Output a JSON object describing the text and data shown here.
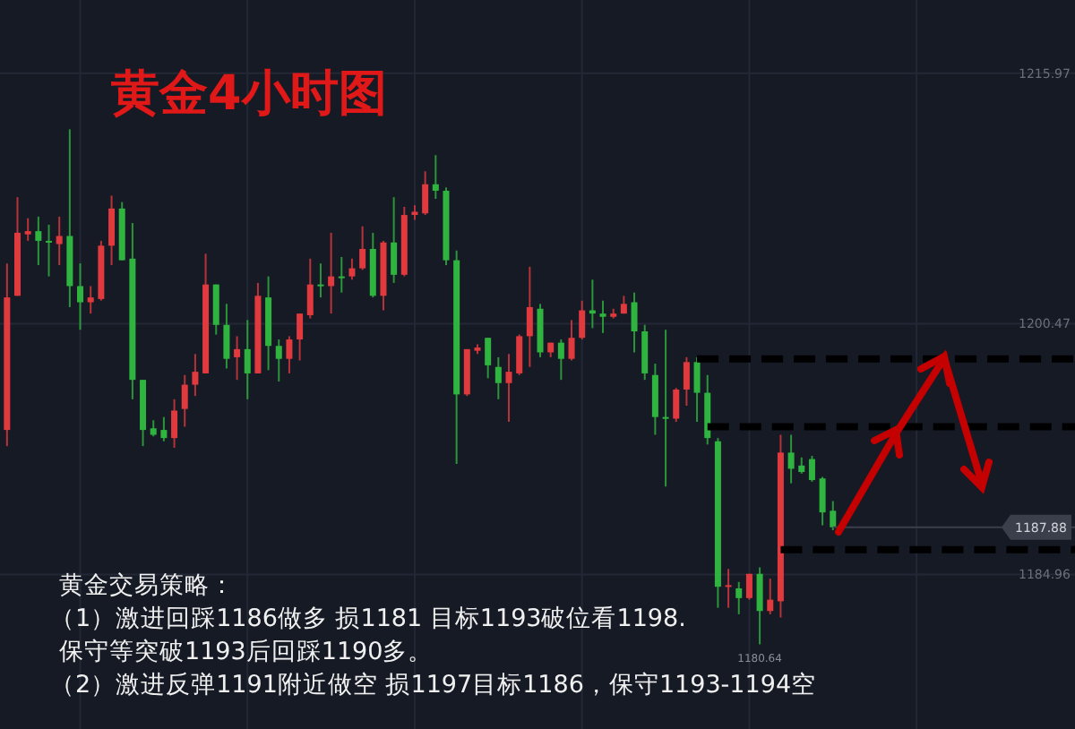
{
  "chart_data": {
    "type": "candlestick",
    "title": "黄金4小时图",
    "categories": [
      null,
      null,
      null,
      null,
      null,
      null,
      null,
      null,
      null,
      null,
      null,
      null,
      null,
      null,
      null,
      null,
      null,
      null,
      null,
      null,
      null,
      null,
      null,
      null,
      null,
      null,
      null,
      null,
      null,
      null,
      null,
      null,
      null,
      null,
      null,
      null,
      null,
      null,
      null,
      null,
      null,
      null,
      null,
      null,
      null,
      null,
      null,
      null,
      null,
      null,
      null,
      null,
      null,
      null,
      null,
      null,
      null,
      null,
      null,
      null,
      null,
      null,
      null,
      null,
      null,
      null,
      null,
      null,
      null,
      null,
      null,
      null,
      null,
      null,
      null,
      null,
      null,
      null,
      null,
      null,
      null,
      null,
      null,
      null,
      null,
      null,
      null,
      null,
      null,
      null,
      null,
      null,
      null,
      null,
      null,
      null,
      null
    ],
    "ohlc": [
      [
        1193.9,
        1204.2,
        1192.9,
        1202.1
      ],
      [
        1202.2,
        1208.3,
        1202.2,
        1206.1
      ],
      [
        1206.0,
        1207.0,
        1205.6,
        1206.2
      ],
      [
        1206.2,
        1207.1,
        1204.1,
        1205.6
      ],
      [
        1205.6,
        1206.6,
        1203.4,
        1205.5
      ],
      [
        1205.4,
        1207.1,
        1204.1,
        1205.9
      ],
      [
        1205.9,
        1212.5,
        1201.5,
        1202.8
      ],
      [
        1202.8,
        1204.2,
        1200.1,
        1201.8
      ],
      [
        1201.8,
        1202.8,
        1201.1,
        1202.1
      ],
      [
        1202.0,
        1205.6,
        1201.9,
        1205.3
      ],
      [
        1205.3,
        1208.4,
        1204.1,
        1207.6
      ],
      [
        1207.6,
        1208.0,
        1204.4,
        1204.4
      ],
      [
        1204.5,
        1206.7,
        1195.8,
        1197.0
      ],
      [
        1197.0,
        1197.0,
        1192.9,
        1193.9
      ],
      [
        1194.0,
        1194.5,
        1193.5,
        1193.6
      ],
      [
        1193.9,
        1194.7,
        1193.2,
        1193.4
      ],
      [
        1193.4,
        1195.8,
        1192.8,
        1195.1
      ],
      [
        1195.2,
        1197.3,
        1194.1,
        1196.7
      ],
      [
        1196.7,
        1198.6,
        1196.0,
        1197.5
      ],
      [
        1197.4,
        1204.8,
        1197.4,
        1202.9
      ],
      [
        1202.9,
        1202.9,
        1199.8,
        1200.4
      ],
      [
        1200.4,
        1201.7,
        1197.7,
        1198.3
      ],
      [
        1198.4,
        1199.7,
        1197.0,
        1198.9
      ],
      [
        1198.9,
        1200.7,
        1195.8,
        1197.4
      ],
      [
        1197.4,
        1203.0,
        1197.4,
        1202.2
      ],
      [
        1202.1,
        1203.4,
        1197.6,
        1199.1
      ],
      [
        1199.1,
        1199.5,
        1196.9,
        1198.3
      ],
      [
        1198.3,
        1199.7,
        1197.4,
        1199.5
      ],
      [
        1199.5,
        1201.1,
        1198.2,
        1201.1
      ],
      [
        1201.0,
        1204.5,
        1200.8,
        1202.9
      ],
      [
        1202.9,
        1204.2,
        1202.1,
        1202.8
      ],
      [
        1202.8,
        1206.1,
        1201.1,
        1203.4
      ],
      [
        1203.4,
        1204.6,
        1202.4,
        1203.3
      ],
      [
        1203.4,
        1204.5,
        1203.2,
        1203.9
      ],
      [
        1203.9,
        1206.5,
        1203.8,
        1205.1
      ],
      [
        1205.1,
        1206.1,
        1202.1,
        1202.2
      ],
      [
        1202.2,
        1205.6,
        1201.3,
        1205.5
      ],
      [
        1205.5,
        1208.3,
        1203.0,
        1203.5
      ],
      [
        1203.5,
        1207.7,
        1203.4,
        1207.2
      ],
      [
        1207.2,
        1207.8,
        1206.9,
        1207.4
      ],
      [
        1207.3,
        1209.9,
        1207.2,
        1209.1
      ],
      [
        1209.1,
        1210.9,
        1208.2,
        1208.7
      ],
      [
        1208.7,
        1208.9,
        1204.1,
        1204.4
      ],
      [
        1204.4,
        1205.0,
        1191.8,
        1196.1
      ],
      [
        1196.1,
        1198.9,
        1196.0,
        1198.9
      ],
      [
        1198.8,
        1199.2,
        1198.6,
        1199.0
      ],
      [
        1199.6,
        1199.6,
        1197.1,
        1197.9
      ],
      [
        1197.8,
        1198.4,
        1195.8,
        1196.8
      ],
      [
        1196.8,
        1198.6,
        1194.4,
        1197.5
      ],
      [
        1197.4,
        1199.8,
        1197.3,
        1199.7
      ],
      [
        1199.7,
        1204.0,
        1197.8,
        1201.5
      ],
      [
        1201.4,
        1201.7,
        1198.4,
        1198.7
      ],
      [
        1198.7,
        1199.3,
        1198.4,
        1199.3
      ],
      [
        1199.3,
        1199.5,
        1197.0,
        1198.3
      ],
      [
        1198.3,
        1200.7,
        1198.2,
        1199.6
      ],
      [
        1199.6,
        1201.9,
        1199.5,
        1201.3
      ],
      [
        1201.3,
        1203.2,
        1200.2,
        1201.1
      ],
      [
        1201.1,
        1201.9,
        1199.9,
        1200.9
      ],
      [
        1200.9,
        1201.4,
        1200.8,
        1201.1
      ],
      [
        1201.1,
        1202.2,
        1201.1,
        1201.7
      ],
      [
        1201.8,
        1202.4,
        1198.7,
        1200.0
      ],
      [
        1200.0,
        1200.4,
        1197.0,
        1197.4
      ],
      [
        1197.3,
        1198.0,
        1193.6,
        1194.7
      ],
      [
        1194.7,
        1200.1,
        1190.4,
        1194.6
      ],
      [
        1194.6,
        1196.5,
        1194.4,
        1196.4
      ],
      [
        1196.4,
        1198.4,
        1195.4,
        1198.1
      ],
      [
        1198.1,
        1198.4,
        1194.4,
        1196.2
      ],
      [
        1196.2,
        1197.3,
        1193.0,
        1193.4
      ],
      [
        1193.2,
        1193.4,
        1182.9,
        1184.2
      ],
      [
        1184.2,
        1185.3,
        1182.9,
        1184.3
      ],
      [
        1184.1,
        1184.5,
        1182.5,
        1183.5
      ],
      [
        1183.5,
        1185.0,
        1183.4,
        1185.0
      ],
      [
        1185.0,
        1185.4,
        1180.64,
        1182.7
      ],
      [
        1182.7,
        1184.7,
        1182.5,
        1183.4
      ],
      [
        1183.3,
        1193.6,
        1182.3,
        1192.5
      ],
      [
        1192.5,
        1193.6,
        1190.6,
        1191.5
      ],
      [
        1191.7,
        1192.2,
        1191.2,
        1191.3
      ],
      [
        1192.1,
        1192.3,
        1190.7,
        1190.8
      ],
      [
        1190.9,
        1191.0,
        1188.0,
        1188.8
      ],
      [
        1188.9,
        1189.5,
        1187.7,
        1187.88
      ],
      null,
      null,
      null,
      null,
      null,
      null,
      null,
      null,
      null,
      null,
      null,
      null,
      null,
      null,
      null,
      null,
      null
    ],
    "colors": [
      "#e0393e",
      "#e0393e",
      "#e0393e",
      "#2fb53f",
      "#2fb53f",
      "#e0393e",
      "#2fb53f",
      "#2fb53f",
      "#e0393e",
      "#e0393e",
      "#e0393e",
      "#2fb53f",
      "#2fb53f",
      "#2fb53f",
      "#2fb53f",
      "#2fb53f",
      "#e0393e",
      "#e0393e",
      "#e0393e",
      "#e0393e",
      "#2fb53f",
      "#2fb53f",
      "#e0393e",
      "#2fb53f",
      "#e0393e",
      "#2fb53f",
      "#2fb53f",
      "#e0393e",
      "#e0393e",
      "#e0393e",
      "#2fb53f",
      "#e0393e",
      "#2fb53f",
      "#e0393e",
      "#e0393e",
      "#2fb53f",
      "#e0393e",
      "#2fb53f",
      "#e0393e",
      "#e0393e",
      "#e0393e",
      "#2fb53f",
      "#2fb53f",
      "#2fb53f",
      "#e0393e",
      "#e0393e",
      "#2fb53f",
      "#2fb53f",
      "#e0393e",
      "#e0393e",
      "#e0393e",
      "#2fb53f",
      "#e0393e",
      "#2fb53f",
      "#e0393e",
      "#e0393e",
      "#2fb53f",
      "#2fb53f",
      "#e0393e",
      "#e0393e",
      "#2fb53f",
      "#2fb53f",
      "#2fb53f",
      "#2fb53f",
      "#e0393e",
      "#e0393e",
      "#2fb53f",
      "#2fb53f",
      "#2fb53f",
      "#e0393e",
      "#2fb53f",
      "#e0393e",
      "#2fb53f",
      "#e0393e",
      "#e0393e",
      "#2fb53f",
      "#2fb53f",
      "#2fb53f",
      "#2fb53f",
      "#2fb53f",
      null,
      null,
      null,
      null,
      null,
      null,
      null,
      null,
      null,
      null,
      null,
      null,
      null,
      null,
      null,
      null,
      null
    ],
    "ylim": [
      1175.4,
      1220.5
    ],
    "yticks": [
      1184.96,
      1200.47,
      1215.97
    ],
    "grid": true,
    "tick_labels": "y",
    "ref_lines": [
      {
        "axis": "y",
        "value": 1198.3,
        "color": "#000000",
        "line_style": "dashed"
      },
      {
        "axis": "y",
        "value": 1194.1,
        "color": "#000000",
        "line_style": "dashed"
      },
      {
        "axis": "y",
        "value": 1186.5,
        "color": "#000000",
        "line_style": "dashed"
      },
      {
        "axis": "y",
        "value": 1187.88,
        "label": "1187.88",
        "color": "#3a3f4b",
        "line_style": "solid"
      }
    ],
    "annotations": [
      {
        "text": "1180.64",
        "y": 1180.64
      },
      "黄金交易策略：",
      "（1）激进回踩1186做多 损1181 目标1193破位看1198.",
      "保守等突破1193后回踩1190多。",
      "（2）激进反弹1191附近做空 损1197目标1186，保守1193-1194空"
    ]
  }
}
